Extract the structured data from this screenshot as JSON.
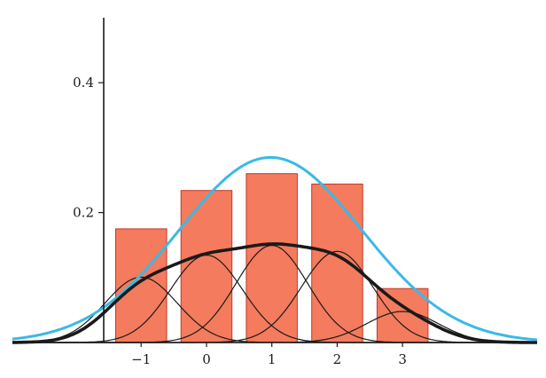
{
  "chart_data": {
    "type": "bar",
    "title": "",
    "xlabel": "",
    "ylabel": "",
    "x_ticks": [
      "−1",
      "0",
      "1",
      "2",
      "3"
    ],
    "y_ticks": [
      "0.2",
      "0.4"
    ],
    "xlim": [
      -2.97,
      5.06
    ],
    "ylim": [
      0,
      0.5
    ],
    "grid": false,
    "legend": "none",
    "bars": {
      "x": [
        -1,
        0,
        1,
        2,
        3
      ],
      "values": [
        0.175,
        0.234,
        0.26,
        0.244,
        0.083
      ],
      "width": 0.78,
      "fill": "#f47b5d",
      "stroke": "#c0392b"
    },
    "kernel_bandwidth": 0.55,
    "kernel_color": "#1a1a1a",
    "mixture_curve": {
      "color": "#1a1a1a"
    },
    "normal_curve": {
      "mean": 0.98,
      "sd": 1.4,
      "color": "#3bb9e6"
    }
  }
}
